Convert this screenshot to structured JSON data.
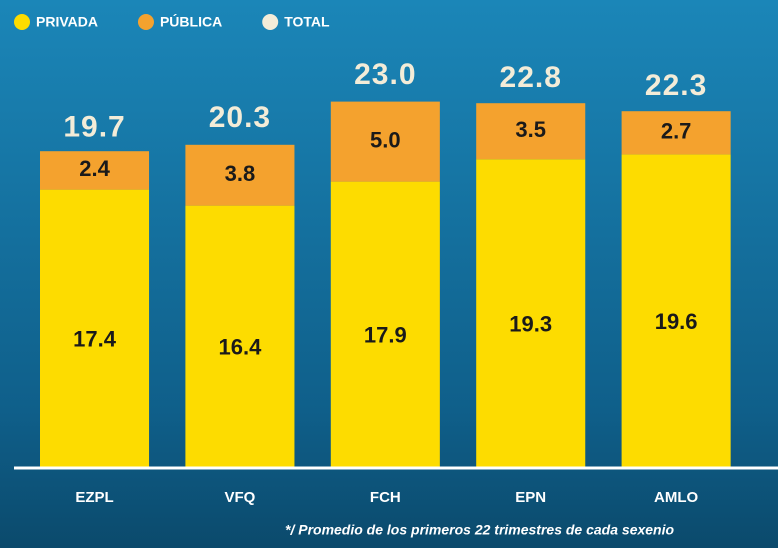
{
  "chart_data": {
    "type": "stacked_bar",
    "categories": [
      "EZPL",
      "VFQ",
      "FCH",
      "EPN",
      "AMLO"
    ],
    "series": [
      {
        "name": "PRIVADA",
        "color": "#fddc00",
        "values": [
          17.4,
          16.4,
          17.9,
          19.3,
          19.6
        ]
      },
      {
        "name": "PÚBLICA",
        "color": "#f4a22e",
        "values": [
          2.4,
          3.8,
          5.0,
          3.5,
          2.7
        ],
        "value_labels": [
          "2.4",
          "3.8",
          "5.0",
          "3.5",
          "2.7"
        ]
      },
      {
        "name": "TOTAL",
        "color": "#f3ecd8",
        "values": [
          19.7,
          20.3,
          23.0,
          22.8,
          22.3
        ],
        "value_labels": [
          "19.7",
          "20.3",
          "23.0",
          "22.8",
          "22.3"
        ]
      }
    ],
    "ylim": [
      0,
      28
    ],
    "note": "*/ Promedio de los primeros 22 trimestres de cada sexenio"
  }
}
